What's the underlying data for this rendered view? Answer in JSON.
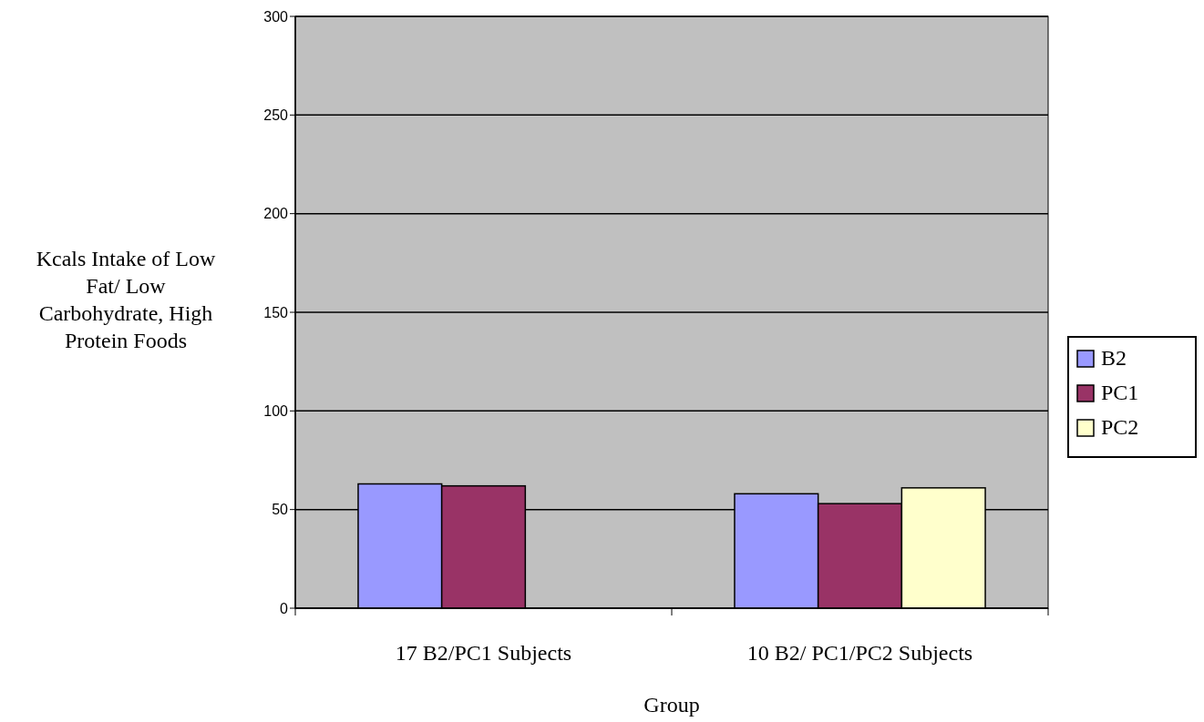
{
  "chart_data": {
    "type": "bar",
    "xlabel": "Group",
    "ylabel": "Kcals Intake of Low Fat/ Low Carbohydrate, High Protein Foods",
    "categories": [
      "17 B2/PC1 Subjects",
      "10 B2/ PC1/PC2 Subjects"
    ],
    "series": [
      {
        "name": "B2",
        "color": "#9999ff",
        "values": [
          63,
          58
        ]
      },
      {
        "name": "PC1",
        "color": "#993366",
        "values": [
          62,
          53
        ]
      },
      {
        "name": "PC2",
        "color": "#ffffcc",
        "values": [
          null,
          61
        ]
      }
    ],
    "ylim": [
      0,
      300
    ],
    "yticks": [
      0,
      50,
      100,
      150,
      200,
      250,
      300
    ],
    "grid": "y",
    "legend": "right"
  }
}
